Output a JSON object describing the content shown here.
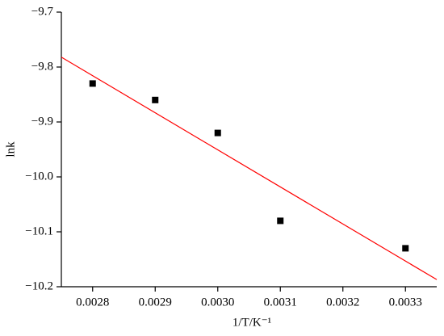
{
  "chart_data": {
    "type": "scatter",
    "x_label": "1/T/K⁻¹",
    "y_label": "lnk",
    "xlim": [
      0.00275,
      0.00335
    ],
    "ylim": [
      -10.2,
      -9.7
    ],
    "xticks": [
      0.0028,
      0.0029,
      {
        "value": 0.003,
        "label": "0.0030"
      },
      0.0031,
      0.0032,
      0.0033
    ],
    "yticks": [
      {
        "value": -9.7,
        "label": "−9.7"
      },
      {
        "value": -9.8,
        "label": "−9.8"
      },
      {
        "value": -9.9,
        "label": "−9.9"
      },
      {
        "value": -10.0,
        "label": "−10.0"
      },
      {
        "value": -10.1,
        "label": "−10.1"
      },
      {
        "value": -10.2,
        "label": "−10.2"
      }
    ],
    "series": [
      {
        "style": "square",
        "color": "#000000",
        "x": [
          0.0028,
          0.0029,
          0.003,
          0.0031,
          0.0033
        ],
        "values": [
          -9.83,
          -9.86,
          -9.92,
          -10.08,
          -10.13
        ]
      },
      {
        "style": "line",
        "color": "#ff0000",
        "x": [
          0.00275,
          0.00335
        ],
        "values": [
          -9.782,
          -10.187
        ]
      }
    ]
  }
}
